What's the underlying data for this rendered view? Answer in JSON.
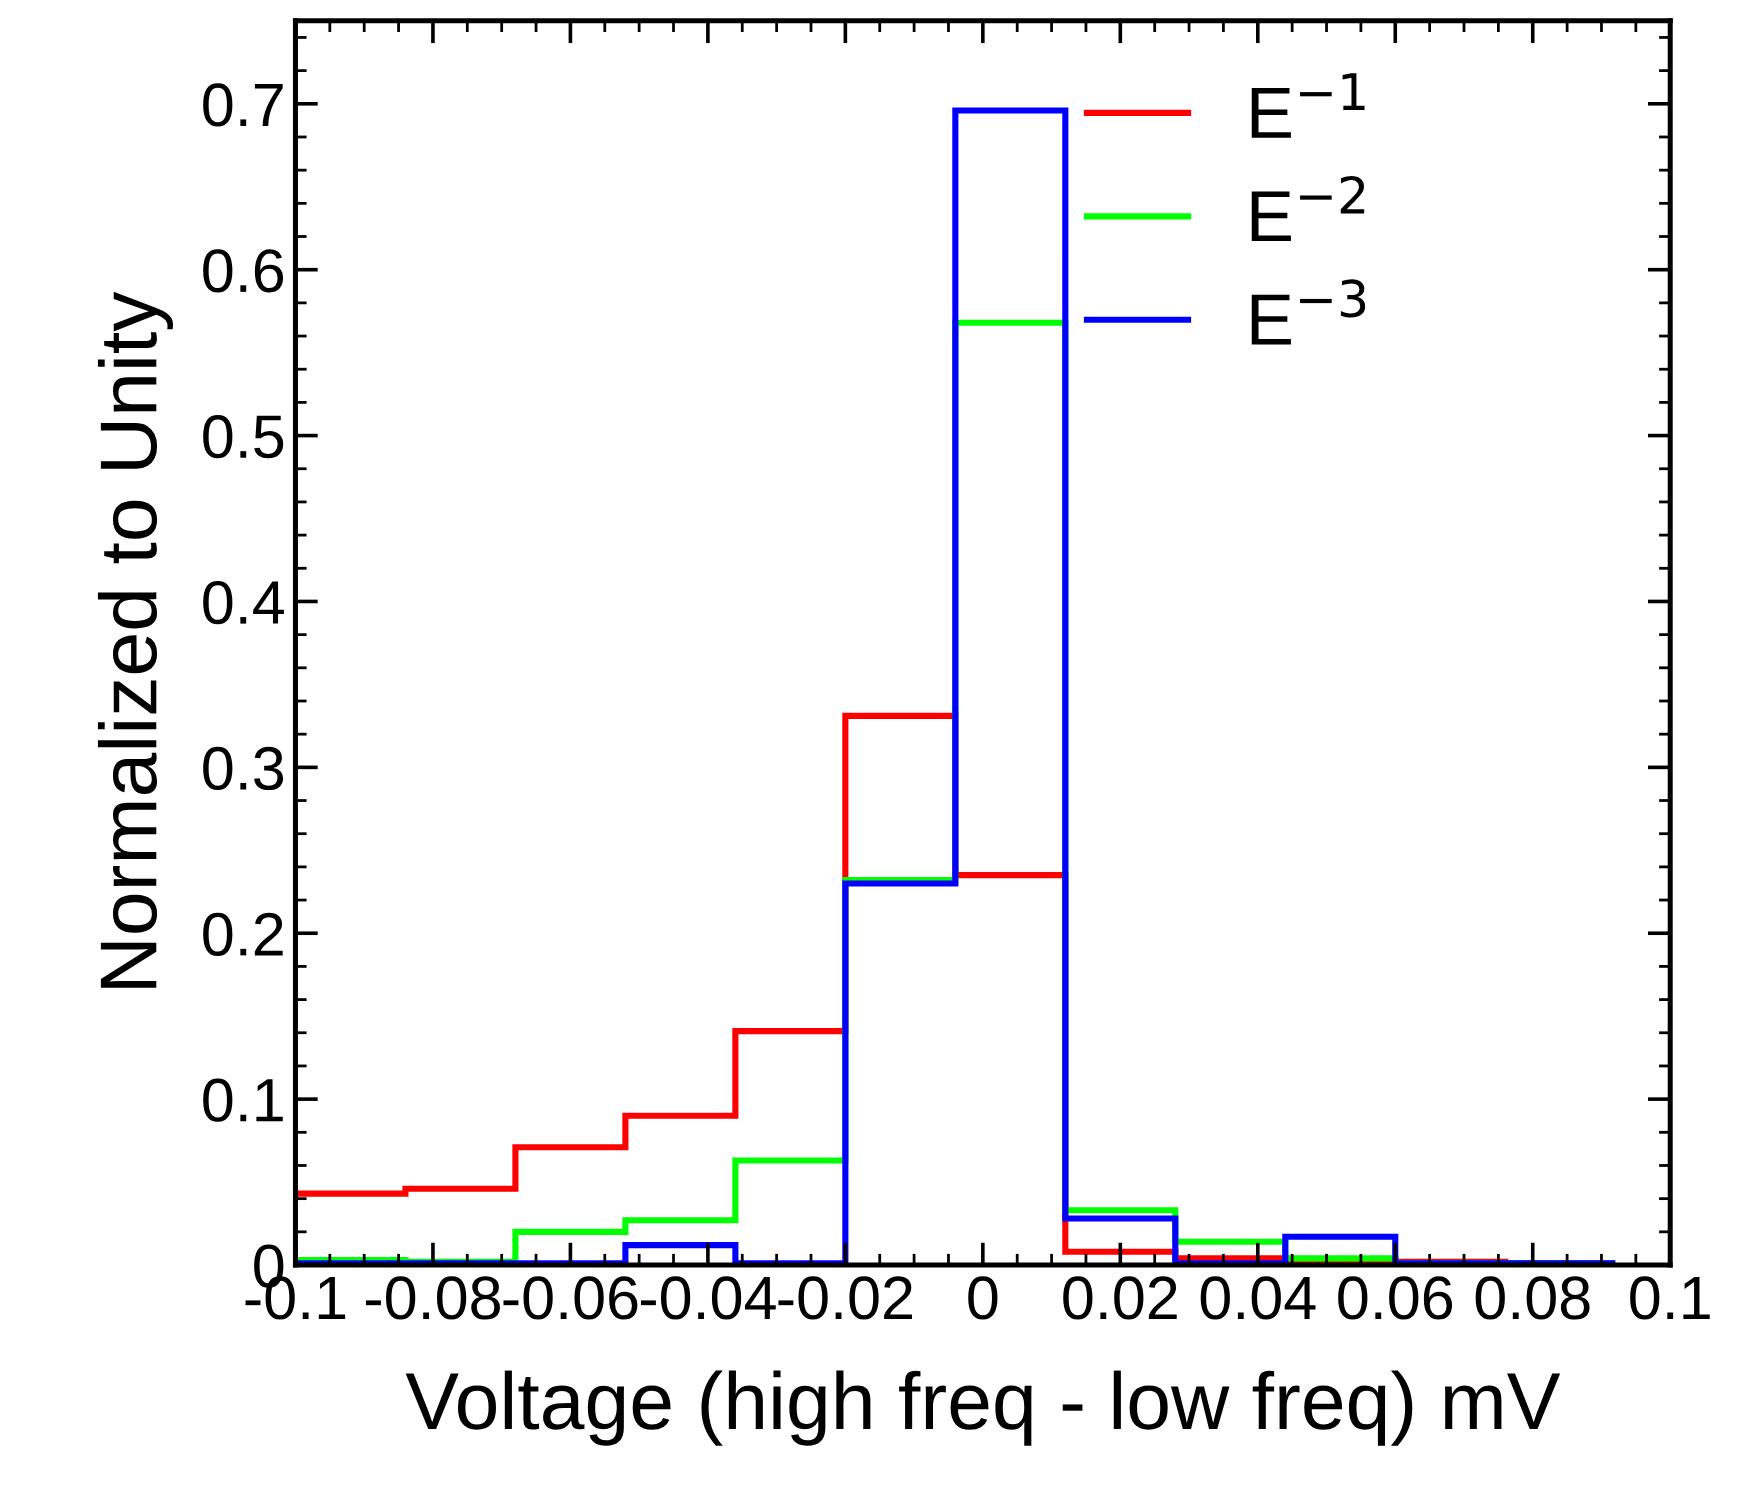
{
  "chart_data": {
    "type": "histogram",
    "xlabel": "Voltage (high freq - low freq) mV",
    "ylabel": "Normalized to Unity",
    "bins": [
      -0.1,
      -0.084,
      -0.068,
      -0.052,
      -0.036,
      -0.02,
      -0.004,
      0.012,
      0.028,
      0.044,
      0.06,
      0.076,
      0.092
    ],
    "series": [
      {
        "name": "E$^{−1}$",
        "color": "#ff0000",
        "values": [
          0.043,
          0.046,
          0.071,
          0.09,
          0.141,
          0.331,
          0.235,
          0.008,
          0.004,
          0.003,
          0.002,
          0.001
        ]
      },
      {
        "name": "E$^{−2}$",
        "color": "#00ff00",
        "values": [
          0.003,
          0.002,
          0.02,
          0.027,
          0.063,
          0.232,
          0.568,
          0.033,
          0.014,
          0.004,
          0.001,
          0.001
        ]
      },
      {
        "name": "E$^{−3}$",
        "color": "#0000ff",
        "values": [
          0.001,
          0.001,
          0.001,
          0.012,
          0.001,
          0.23,
          0.696,
          0.028,
          0.001,
          0.017,
          0.001,
          0.001
        ]
      }
    ],
    "xlim": [
      -0.1,
      0.1
    ],
    "xticks": [
      -0.1,
      -0.08,
      -0.06,
      -0.04,
      -0.02,
      0,
      0.02,
      0.04,
      0.06,
      0.08,
      0.1
    ],
    "ylim": [
      0,
      0.75
    ],
    "yticks": [
      0,
      0.1,
      0.2,
      0.3,
      0.4,
      0.5,
      0.6,
      0.7
    ],
    "grid": false,
    "legend": "top right"
  }
}
